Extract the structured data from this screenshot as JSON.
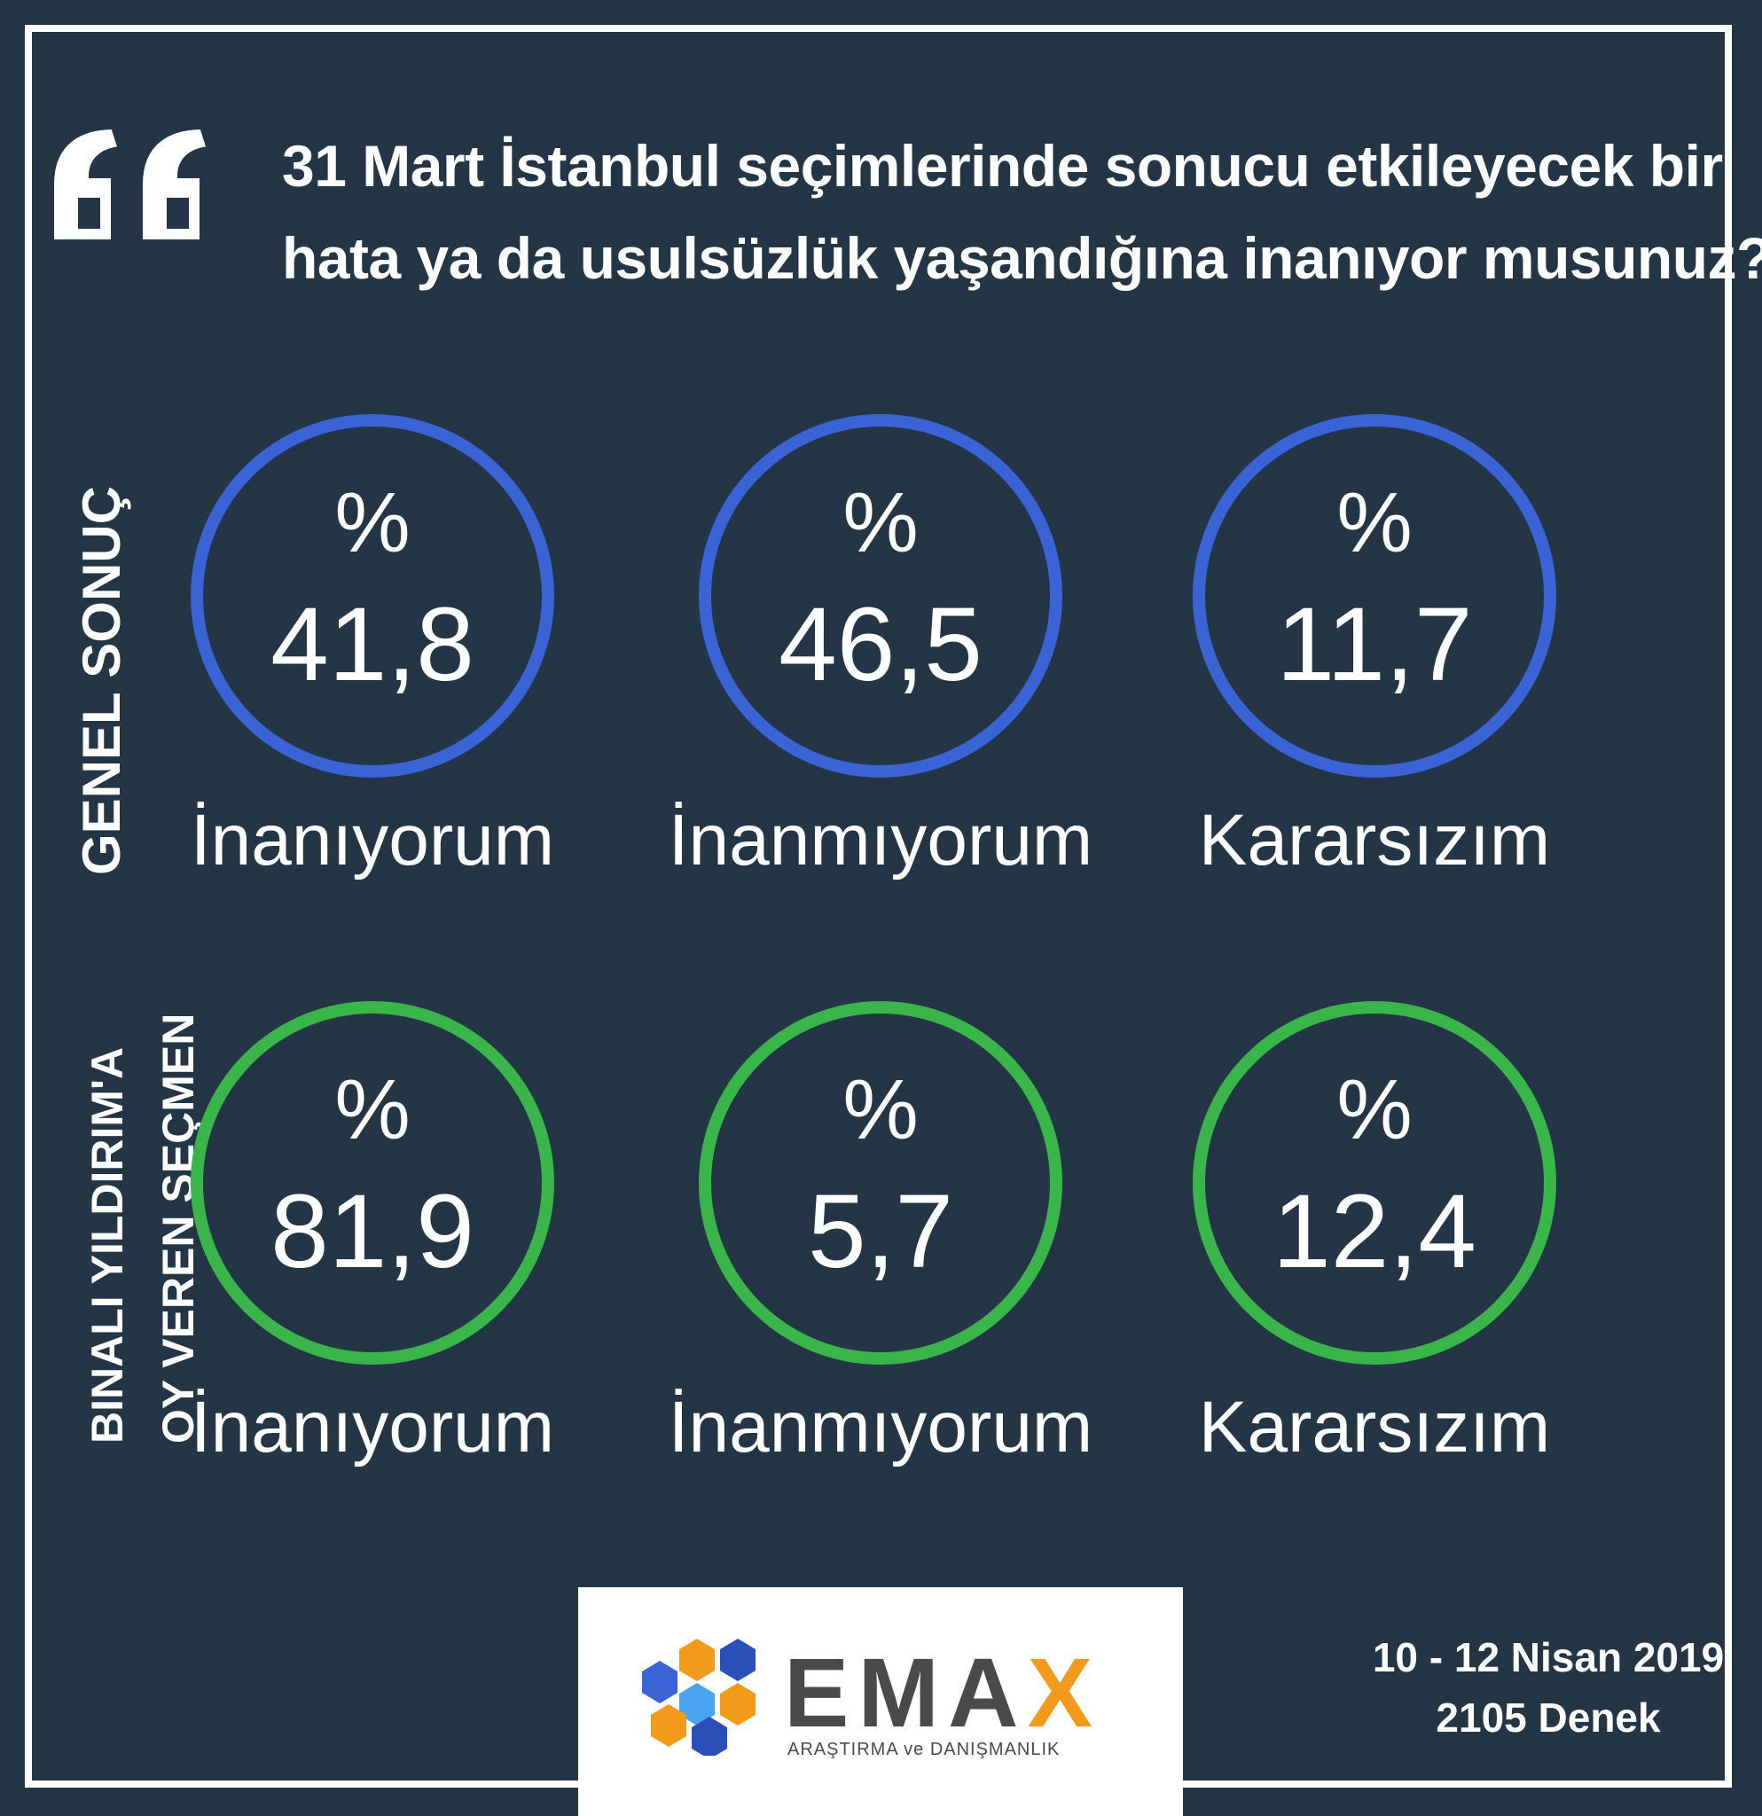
{
  "question": {
    "line1": "31 Mart İstanbul seçimlerinde sonucu etkileyecek bir",
    "line2": "hata ya da usulsüzlük yaşandığına inanıyor musunuz?"
  },
  "row_labels": {
    "row1": "GENEL SONUÇ",
    "row2_line1": "BINALI YILDIRIM'A",
    "row2_line2": "OY VEREN SEÇMEN"
  },
  "chart_data": [
    {
      "type": "table",
      "title": "GENEL SONUÇ",
      "categories": [
        "İnanıyorum",
        "İnanmıyorum",
        "Kararsızım"
      ],
      "prefix": "%",
      "values": [
        41.8,
        46.5,
        11.7
      ],
      "value_labels": [
        "41,8",
        "46,5",
        "11,7"
      ],
      "color": "#3a64d6"
    },
    {
      "type": "table",
      "title": "BINALI YILDIRIM'A OY VEREN SEÇMEN",
      "categories": [
        "İnanıyorum",
        "İnanmıyorum",
        "Kararsızım"
      ],
      "prefix": "%",
      "values": [
        81.9,
        5.7,
        12.4
      ],
      "value_labels": [
        "81,9",
        "5,7",
        "12,4"
      ],
      "color": "#39b54a"
    }
  ],
  "logo": {
    "name_part1": "EMA",
    "name_part2": "X",
    "tagline": "ARAŞTIRMA ve DANIŞMANLIK"
  },
  "footer": {
    "date": "10 - 12 Nisan 2019",
    "sample": "2105 Denek"
  },
  "colors": {
    "background": "#243546",
    "row1_ring": "#3a64d6",
    "row2_ring": "#39b54a",
    "logo_accent": "#f29a1b"
  }
}
